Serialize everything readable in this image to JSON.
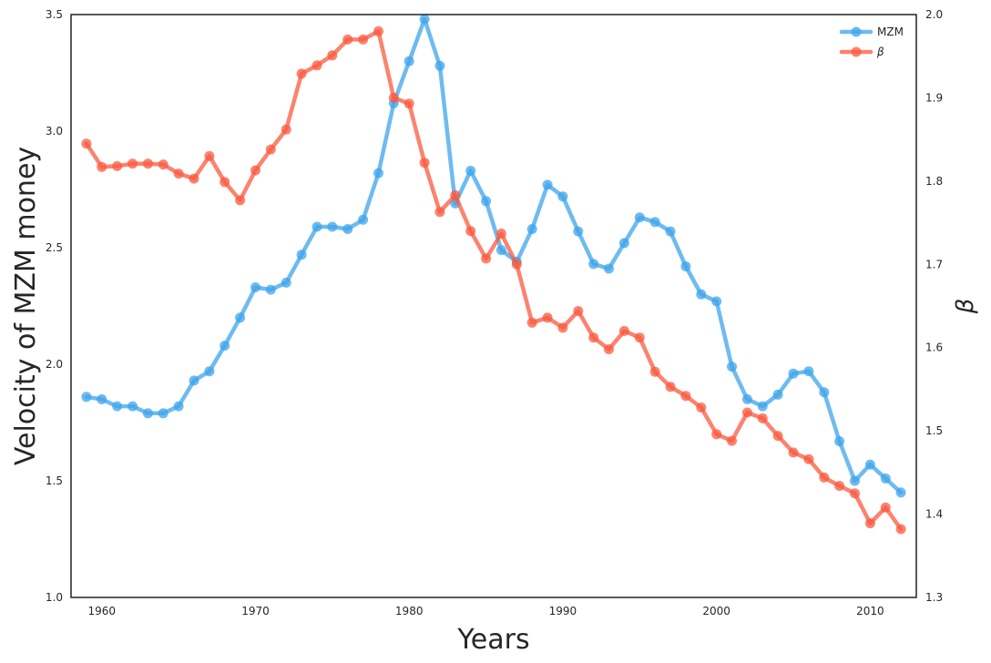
{
  "chart_data": {
    "type": "line",
    "xlabel": "Years",
    "ylabel": "Velocity of MZM money",
    "y2label": "β",
    "xlim": [
      1958,
      2013
    ],
    "ylim": [
      1.0,
      3.5
    ],
    "y2lim": [
      1.3,
      2.0
    ],
    "xticks": [
      "1960",
      "1970",
      "1980",
      "1990",
      "2000",
      "2010"
    ],
    "yticks": [
      "1.0",
      "1.5",
      "2.0",
      "2.5",
      "3.0",
      "3.5"
    ],
    "y2ticks": [
      "1.3",
      "1.4",
      "1.5",
      "1.6",
      "1.7",
      "1.8",
      "1.9",
      "2.0"
    ],
    "grid": false,
    "legend": "top-right",
    "x": [
      1959,
      1960,
      1961,
      1962,
      1963,
      1964,
      1965,
      1966,
      1967,
      1968,
      1969,
      1970,
      1971,
      1972,
      1973,
      1974,
      1975,
      1976,
      1977,
      1978,
      1979,
      1980,
      1981,
      1982,
      1983,
      1984,
      1985,
      1986,
      1987,
      1988,
      1989,
      1990,
      1991,
      1992,
      1993,
      1994,
      1995,
      1996,
      1997,
      1998,
      1999,
      2000,
      2001,
      2002,
      2003,
      2004,
      2005,
      2006,
      2007,
      2008,
      2009,
      2010,
      2011,
      2012
    ],
    "series": [
      {
        "name": "MZM",
        "axis": "left",
        "color": "#3da4ec",
        "values": [
          1.86,
          1.85,
          1.82,
          1.82,
          1.79,
          1.79,
          1.82,
          1.93,
          1.97,
          2.08,
          2.2,
          2.33,
          2.32,
          2.35,
          2.47,
          2.59,
          2.59,
          2.58,
          2.62,
          2.82,
          3.12,
          3.3,
          3.48,
          3.28,
          2.69,
          2.83,
          2.7,
          2.49,
          2.44,
          2.58,
          2.77,
          2.72,
          2.57,
          2.43,
          2.41,
          2.52,
          2.63,
          2.61,
          2.57,
          2.42,
          2.3,
          2.27,
          1.99,
          1.85,
          1.82,
          1.87,
          1.96,
          1.97,
          1.88,
          1.67,
          1.5,
          1.57,
          1.51,
          1.45
        ]
      },
      {
        "name": "β",
        "axis": "right",
        "color": "#fb5a3f",
        "values": [
          1.845,
          1.817,
          1.818,
          1.821,
          1.821,
          1.82,
          1.809,
          1.803,
          1.83,
          1.799,
          1.777,
          1.813,
          1.838,
          1.862,
          1.929,
          1.939,
          1.951,
          1.97,
          1.97,
          1.98,
          1.9,
          1.893,
          1.822,
          1.763,
          1.783,
          1.74,
          1.707,
          1.737,
          1.7,
          1.63,
          1.636,
          1.624,
          1.644,
          1.612,
          1.598,
          1.62,
          1.612,
          1.571,
          1.553,
          1.542,
          1.528,
          1.496,
          1.488,
          1.522,
          1.515,
          1.494,
          1.474,
          1.466,
          1.444,
          1.434,
          1.425,
          1.389,
          1.408,
          1.382
        ]
      }
    ]
  }
}
